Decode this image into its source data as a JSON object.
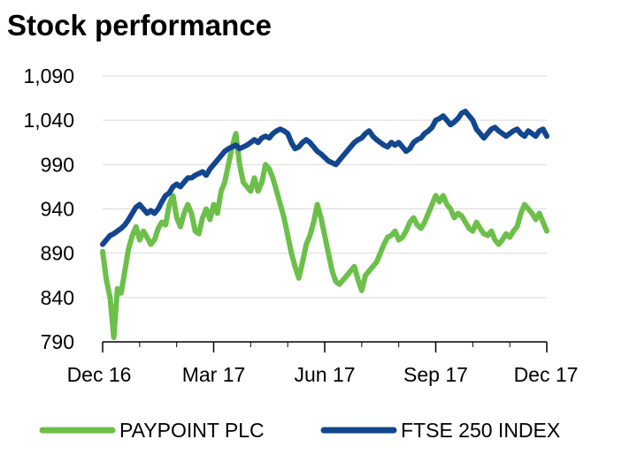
{
  "chart_data": {
    "type": "line",
    "title": "Stock performance",
    "xlabel": "",
    "ylabel": "",
    "x_ticks": [
      "Dec 16",
      "Mar 17",
      "Jun 17",
      "Sep 17",
      "Dec 17"
    ],
    "xlim": [
      "Dec 16",
      "Dec 17"
    ],
    "y_ticks": [
      "1,090",
      "1,040",
      "990",
      "940",
      "890",
      "840",
      "790"
    ],
    "y_tick_values": [
      1090,
      1040,
      990,
      940,
      890,
      840,
      790
    ],
    "ylim": [
      790,
      1090
    ],
    "grid": "horizontal",
    "legend_position": "bottom",
    "series": [
      {
        "name": "PAYPOINT PLC",
        "color": "#6cc04a",
        "x": [
          0,
          0.1,
          0.2,
          0.3,
          0.4,
          0.5,
          0.6,
          0.7,
          0.8,
          0.9,
          1.0,
          1.1,
          1.2,
          1.3,
          1.4,
          1.5,
          1.6,
          1.7,
          1.8,
          1.9,
          2.0,
          2.1,
          2.2,
          2.3,
          2.4,
          2.5,
          2.6,
          2.7,
          2.8,
          2.9,
          3.0,
          3.1,
          3.2,
          3.3,
          3.4,
          3.5,
          3.6,
          3.7,
          3.8,
          3.9,
          4.0,
          4.1,
          4.2,
          4.3,
          4.4,
          4.5,
          4.6,
          4.7,
          4.8,
          4.9,
          5.0,
          5.1,
          5.2,
          5.3,
          5.4,
          5.5,
          5.6,
          5.7,
          5.8,
          5.9,
          6.0,
          6.1,
          6.2,
          6.3,
          6.4,
          6.5,
          6.6,
          6.7,
          6.8,
          6.9,
          7.0,
          7.1,
          7.2,
          7.3,
          7.4,
          7.5,
          7.6,
          7.7,
          7.8,
          7.9,
          8.0,
          8.1,
          8.2,
          8.3,
          8.4,
          8.5,
          8.6,
          8.7,
          8.8,
          8.9,
          9.0,
          9.1,
          9.2,
          9.3,
          9.4,
          9.5,
          9.6,
          9.7,
          9.8,
          9.9,
          10.0,
          10.1,
          10.2,
          10.3,
          10.4,
          10.5,
          10.6,
          10.7,
          10.8,
          10.9,
          11.0,
          11.1,
          11.2,
          11.3,
          11.4,
          11.5,
          11.6,
          11.7,
          11.8,
          11.9,
          12.0
        ],
        "values": [
          892,
          860,
          840,
          795,
          850,
          845,
          870,
          895,
          910,
          920,
          905,
          915,
          908,
          900,
          905,
          918,
          925,
          922,
          945,
          955,
          930,
          920,
          935,
          945,
          935,
          915,
          912,
          930,
          940,
          928,
          945,
          935,
          960,
          970,
          990,
          1010,
          1025,
          990,
          970,
          965,
          960,
          975,
          960,
          970,
          990,
          985,
          975,
          960,
          945,
          930,
          910,
          890,
          875,
          862,
          880,
          900,
          910,
          925,
          945,
          930,
          910,
          890,
          870,
          858,
          855,
          860,
          865,
          870,
          875,
          860,
          848,
          865,
          870,
          875,
          880,
          890,
          900,
          908,
          910,
          915,
          905,
          908,
          915,
          925,
          930,
          922,
          918,
          925,
          935,
          945,
          955,
          948,
          955,
          945,
          940,
          930,
          935,
          932,
          925,
          918,
          915,
          925,
          918,
          912,
          910,
          915,
          905,
          900,
          905,
          912,
          908,
          915,
          920,
          935,
          945,
          940,
          935,
          928,
          935,
          925,
          915
        ]
      },
      {
        "name": "FTSE 250 INDEX",
        "color": "#12468f",
        "x": [
          0,
          0.1,
          0.2,
          0.3,
          0.4,
          0.5,
          0.6,
          0.7,
          0.8,
          0.9,
          1.0,
          1.1,
          1.2,
          1.3,
          1.4,
          1.5,
          1.6,
          1.7,
          1.8,
          1.9,
          2.0,
          2.1,
          2.2,
          2.3,
          2.4,
          2.5,
          2.6,
          2.7,
          2.8,
          2.9,
          3.0,
          3.1,
          3.2,
          3.3,
          3.4,
          3.5,
          3.6,
          3.7,
          3.8,
          3.9,
          4.0,
          4.1,
          4.2,
          4.3,
          4.4,
          4.5,
          4.6,
          4.7,
          4.8,
          4.9,
          5.0,
          5.1,
          5.2,
          5.3,
          5.4,
          5.5,
          5.6,
          5.7,
          5.8,
          5.9,
          6.0,
          6.1,
          6.2,
          6.3,
          6.4,
          6.5,
          6.6,
          6.7,
          6.8,
          6.9,
          7.0,
          7.1,
          7.2,
          7.3,
          7.4,
          7.5,
          7.6,
          7.7,
          7.8,
          7.9,
          8.0,
          8.1,
          8.2,
          8.3,
          8.4,
          8.5,
          8.6,
          8.7,
          8.8,
          8.9,
          9.0,
          9.1,
          9.2,
          9.3,
          9.4,
          9.5,
          9.6,
          9.7,
          9.8,
          9.9,
          10.0,
          10.1,
          10.2,
          10.3,
          10.4,
          10.5,
          10.6,
          10.7,
          10.8,
          10.9,
          11.0,
          11.1,
          11.2,
          11.3,
          11.4,
          11.5,
          11.6,
          11.7,
          11.8,
          11.9,
          12.0
        ],
        "values": [
          900,
          905,
          910,
          912,
          915,
          918,
          922,
          928,
          935,
          942,
          945,
          940,
          935,
          938,
          935,
          940,
          948,
          955,
          958,
          965,
          968,
          965,
          970,
          975,
          975,
          978,
          980,
          982,
          978,
          985,
          990,
          995,
          1000,
          1005,
          1008,
          1010,
          1012,
          1008,
          1010,
          1012,
          1015,
          1018,
          1015,
          1020,
          1022,
          1020,
          1025,
          1028,
          1030,
          1028,
          1025,
          1015,
          1008,
          1010,
          1015,
          1018,
          1015,
          1010,
          1005,
          1002,
          998,
          994,
          992,
          990,
          995,
          1000,
          1005,
          1010,
          1015,
          1018,
          1020,
          1025,
          1028,
          1022,
          1018,
          1015,
          1012,
          1010,
          1015,
          1012,
          1015,
          1010,
          1005,
          1008,
          1015,
          1018,
          1020,
          1025,
          1028,
          1032,
          1040,
          1042,
          1045,
          1040,
          1035,
          1038,
          1042,
          1048,
          1050,
          1045,
          1040,
          1030,
          1025,
          1020,
          1025,
          1030,
          1032,
          1028,
          1025,
          1022,
          1025,
          1028,
          1030,
          1025,
          1022,
          1028,
          1025,
          1022,
          1028,
          1030,
          1022
        ]
      }
    ]
  }
}
